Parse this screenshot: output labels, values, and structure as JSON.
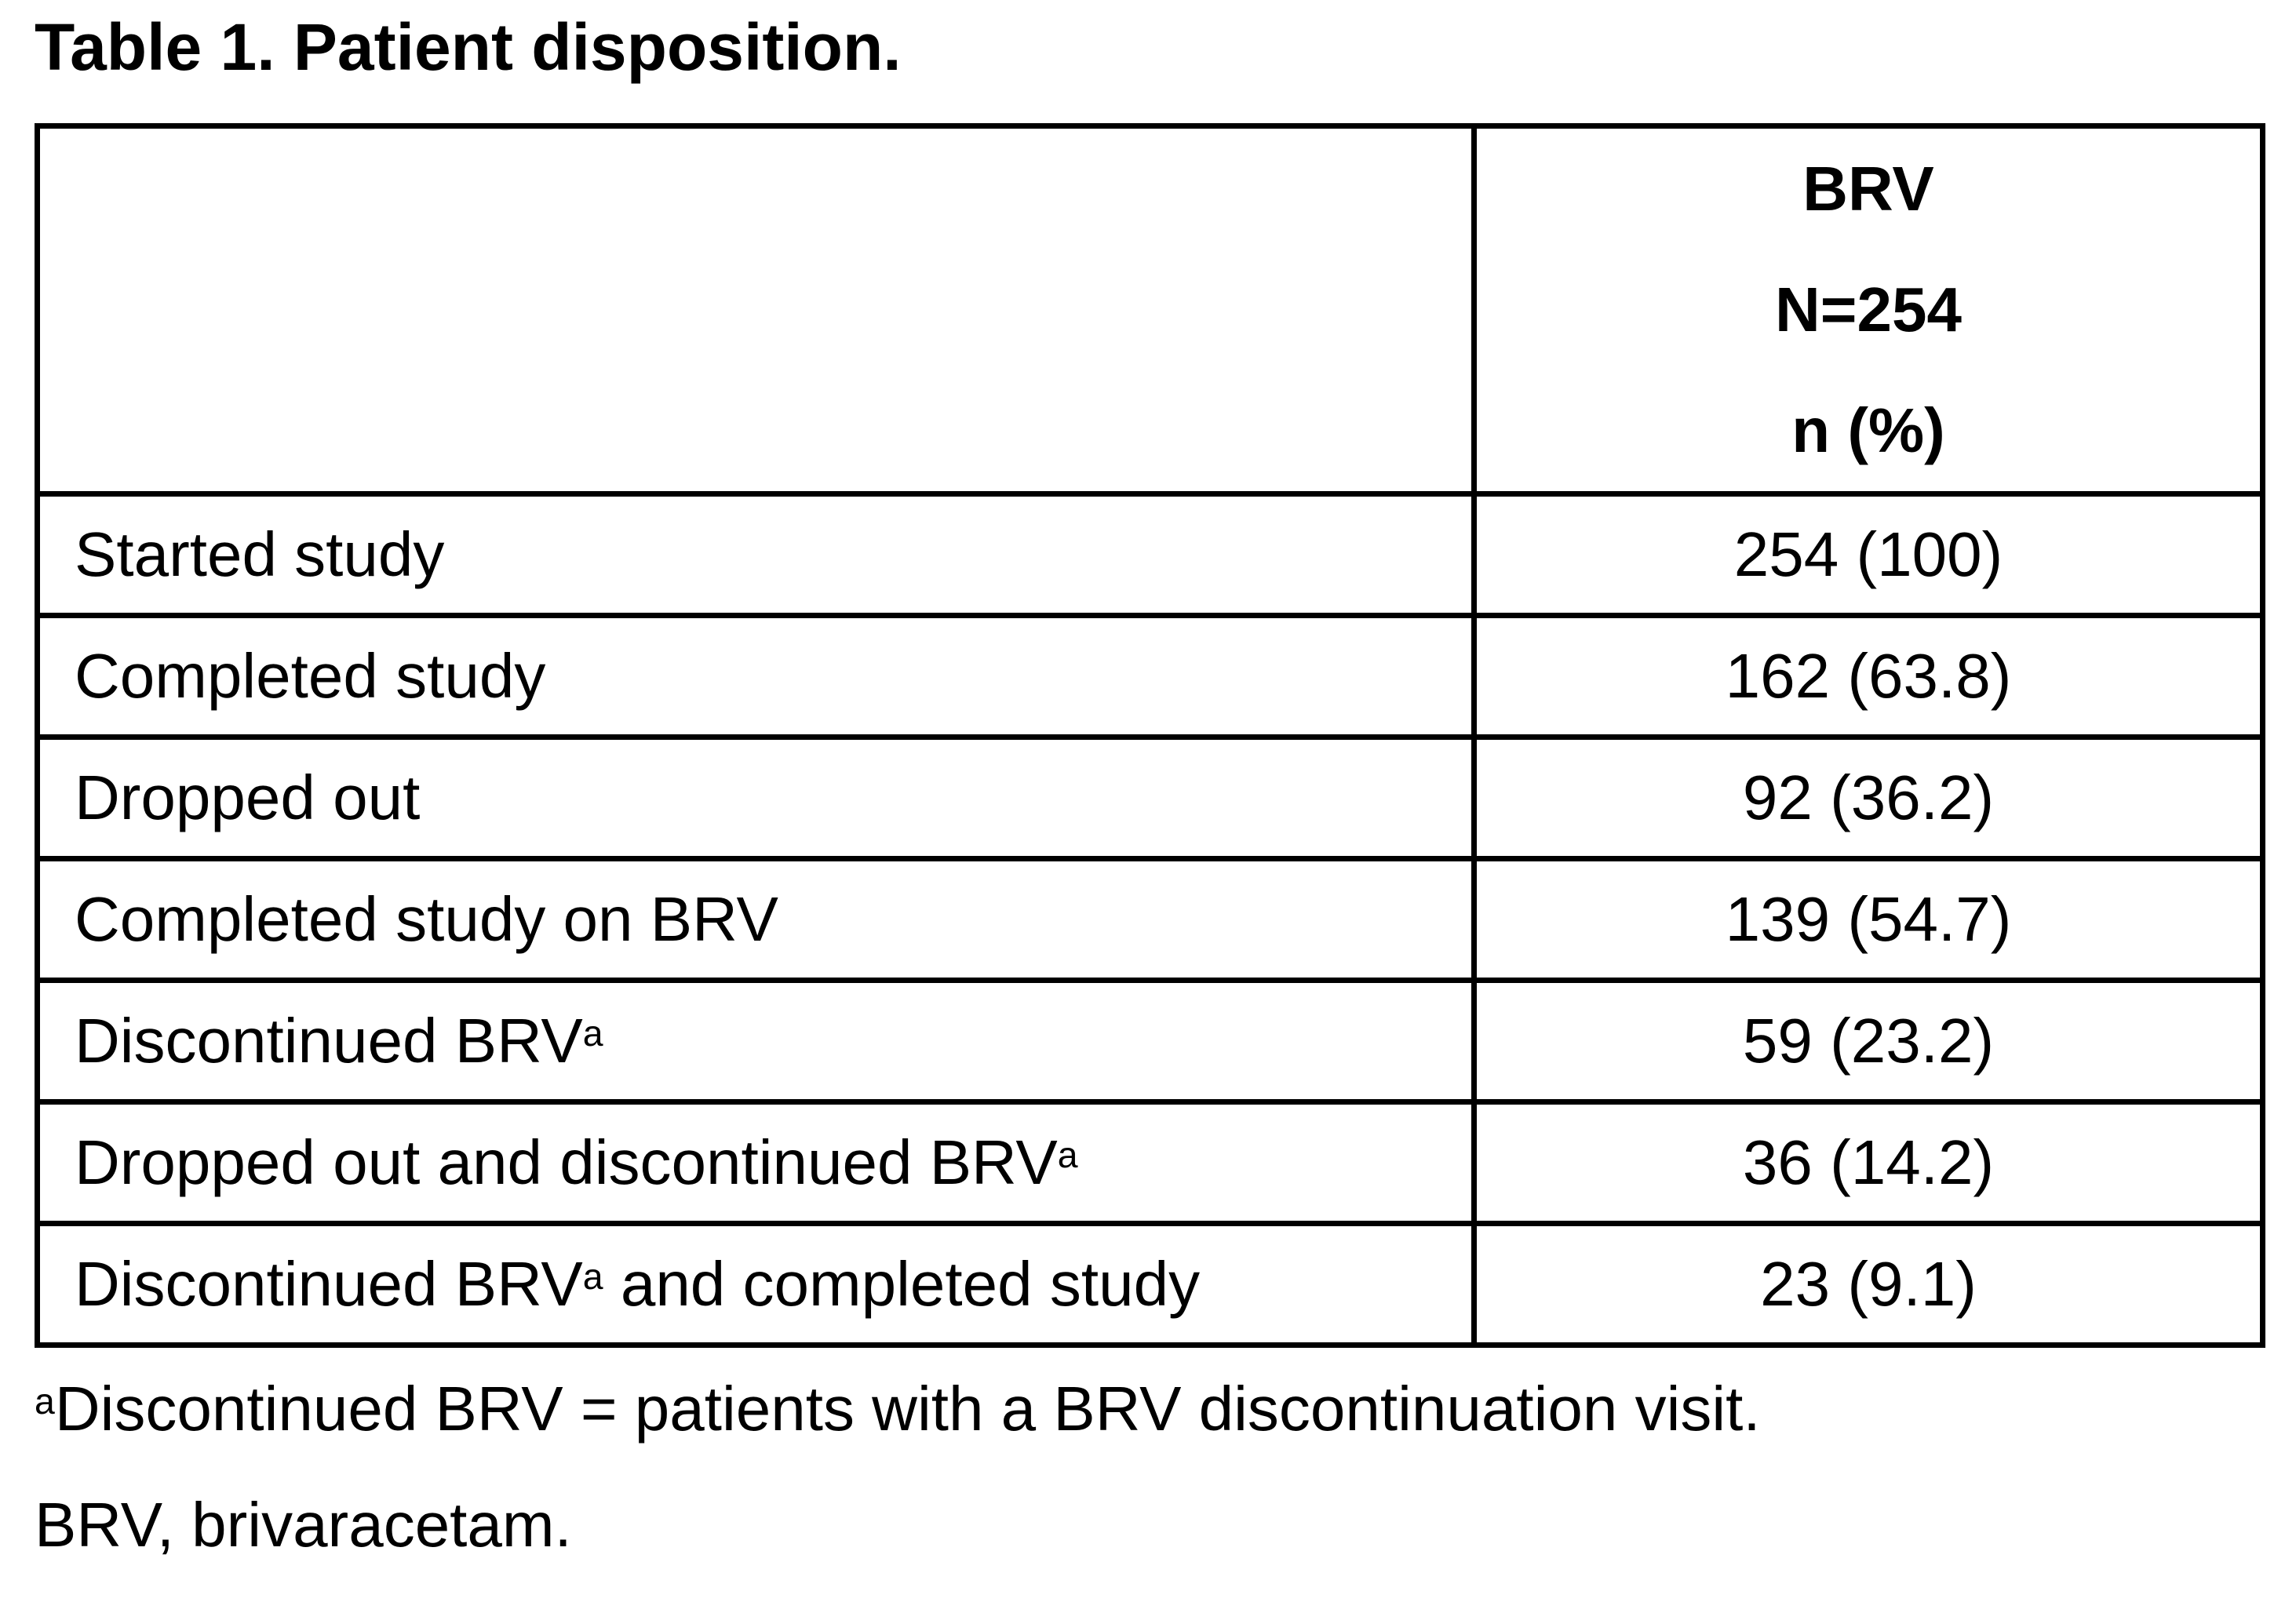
{
  "colors": {
    "text": "#000000",
    "background": "#ffffff",
    "border": "#000000"
  },
  "document": {
    "title": "Table 1. Patient disposition."
  },
  "table": {
    "column_header": {
      "line1": "BRV",
      "line2": "N=254",
      "line3": "n (%)"
    },
    "rows": [
      {
        "label": "Started study",
        "value": "254 (100)"
      },
      {
        "label": "Completed study",
        "value": "162 (63.8)"
      },
      {
        "label": "Dropped out",
        "value": "92 (36.2)"
      },
      {
        "label": "Completed study on BRV",
        "value": "139 (54.7)"
      },
      {
        "label": "Discontinued BRV",
        "label_sup": "a",
        "value": "59 (23.2)"
      },
      {
        "label": "Dropped out and discontinued BRV",
        "label_sup": "a",
        "value": "36 (14.2)"
      },
      {
        "label": "Discontinued BRV",
        "label_sup": "a",
        "label_after": " and completed study",
        "value": "23 (9.1)"
      }
    ]
  },
  "footnotes": {
    "note1_marker": "a",
    "note1": "Discontinued BRV = patients with a BRV discontinuation visit.",
    "note2": "BRV, brivaracetam."
  }
}
